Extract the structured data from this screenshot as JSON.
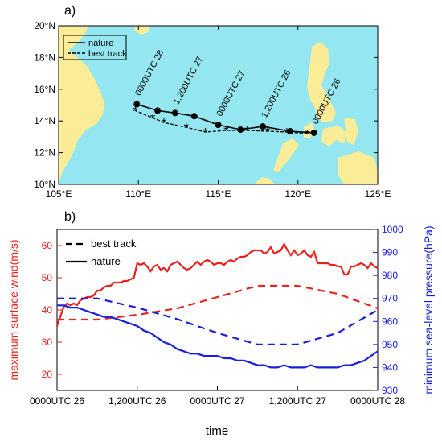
{
  "chart_data": [
    {
      "panel_label": "a)",
      "type": "line",
      "map": {
        "lon_ticks": [
          "105°E",
          "110°E",
          "115°E",
          "120°E",
          "125°E"
        ],
        "lat_ticks": [
          "10°N",
          "12°N",
          "14°N",
          "16°N",
          "18°N",
          "20°N"
        ],
        "xlim": [
          105,
          125
        ],
        "ylim": [
          10,
          20
        ],
        "ocean_color": "#94e6f0",
        "land_color": "#fbec97"
      },
      "legend": {
        "placement": "top-left",
        "items": [
          "nature",
          "best track"
        ]
      },
      "series": [
        {
          "name": "nature",
          "style": "solid-dot",
          "color": "#000000",
          "points": [
            [
              121.0,
              13.25
            ],
            [
              119.5,
              13.35
            ],
            [
              117.8,
              13.65
            ],
            [
              116.4,
              13.45
            ],
            [
              115.0,
              13.75
            ],
            [
              113.5,
              14.3
            ],
            [
              112.3,
              14.5
            ],
            [
              111.2,
              14.65
            ],
            [
              109.9,
              15.05
            ]
          ]
        },
        {
          "name": "best track",
          "style": "dashed-star",
          "color": "#000000",
          "points": [
            [
              120.6,
              13.2
            ],
            [
              119.3,
              13.3
            ],
            [
              118.1,
              13.35
            ],
            [
              116.8,
              13.4
            ],
            [
              115.5,
              13.4
            ],
            [
              114.2,
              13.3
            ],
            [
              113.0,
              13.6
            ],
            [
              111.6,
              13.9
            ],
            [
              110.9,
              14.2
            ],
            [
              109.8,
              14.65
            ]
          ]
        }
      ],
      "annotations": [
        {
          "text": "0000UTC 28",
          "lon": 109.9,
          "lat": 15.05
        },
        {
          "text": "1,200UTC 27",
          "lon": 112.3,
          "lat": 14.5
        },
        {
          "text": "0000UTC 27",
          "lon": 115.0,
          "lat": 13.75
        },
        {
          "text": "1,200UTC 26",
          "lon": 117.8,
          "lat": 13.65
        },
        {
          "text": "0000UTC 26",
          "lon": 121.0,
          "lat": 13.25
        }
      ]
    },
    {
      "panel_label": "b)",
      "type": "line",
      "xlabel": "time",
      "ylabel_left": "maximum surface wind(m/s)",
      "ylabel_right": "minimum sea-level pressure(hPa)",
      "x_ticks": [
        {
          "t": 0,
          "label": "0000UTC 26"
        },
        {
          "t": 12,
          "label": "1,200UTC 26"
        },
        {
          "t": 24,
          "label": "0000UTC 27"
        },
        {
          "t": 36,
          "label": "1,200UTC 27"
        },
        {
          "t": 48,
          "label": "0000UTC 28"
        }
      ],
      "xlim": [
        0,
        48
      ],
      "ylim_left": [
        15,
        65
      ],
      "yticks_left": [
        20,
        30,
        40,
        50,
        60
      ],
      "ylim_right": [
        930,
        1000
      ],
      "yticks_right": [
        930,
        940,
        950,
        960,
        970,
        980,
        990,
        1000
      ],
      "left_color": "#e8231e",
      "right_color": "#1a1ee0",
      "legend": {
        "placement": "top-left",
        "items": [
          "best track",
          "nature"
        ]
      },
      "series": [
        {
          "name": "nature wind",
          "axis": "left",
          "style": "solid",
          "color": "#e8231e",
          "t": [
            0,
            0.5,
            1,
            1.5,
            2,
            2.5,
            3,
            3.5,
            4,
            4.5,
            5,
            5.5,
            6,
            6.5,
            7,
            7.5,
            8,
            8.5,
            9,
            9.5,
            10,
            10.5,
            11,
            11.5,
            12,
            12.5,
            13,
            13.5,
            14,
            14.5,
            15,
            15.5,
            16,
            16.5,
            17,
            17.5,
            18,
            18.5,
            19,
            19.5,
            20,
            20.5,
            21,
            21.5,
            22,
            22.5,
            23,
            23.5,
            24,
            24.5,
            25,
            25.5,
            26,
            26.5,
            27,
            27.5,
            28,
            28.5,
            29,
            29.5,
            30,
            30.5,
            31,
            31.5,
            32,
            32.5,
            33,
            33.5,
            34,
            34.5,
            35,
            35.5,
            36,
            36.5,
            37,
            37.5,
            38,
            38.5,
            39,
            39.5,
            40,
            40.5,
            41,
            41.5,
            42,
            42.5,
            43,
            43.5,
            44,
            44.5,
            45,
            45.5,
            46,
            46.5,
            47,
            47.5,
            48
          ],
          "values": [
            35,
            38,
            41,
            42,
            41.5,
            42,
            41.5,
            43,
            43.5,
            44,
            44,
            44.5,
            46,
            46,
            47,
            47.5,
            47.5,
            48.5,
            48.5,
            48.5,
            49,
            49,
            49.5,
            50,
            54.5,
            54,
            54.5,
            53.5,
            52,
            53.5,
            54,
            52.5,
            53,
            52,
            54,
            54.5,
            55,
            54,
            53,
            52.5,
            53,
            54,
            55,
            54,
            55,
            55.5,
            55,
            54,
            54.5,
            54.5,
            54,
            55,
            55.5,
            55,
            56,
            56.5,
            56.5,
            57,
            58,
            58.5,
            58.5,
            58.5,
            57.5,
            58,
            59.5,
            57.5,
            58,
            58.5,
            60.5,
            58.5,
            57,
            58.5,
            57,
            57.5,
            58.5,
            57,
            56.5,
            58,
            54.5,
            54.5,
            54.5,
            54.5,
            54,
            54,
            53.5,
            53.5,
            51,
            51,
            53.5,
            53.5,
            54,
            54.5,
            54,
            53,
            54.5,
            53.5,
            53
          ]
        },
        {
          "name": "best track wind",
          "axis": "left",
          "style": "dashed",
          "color": "#e8231e",
          "t": [
            0,
            6,
            12,
            18,
            24,
            30,
            36,
            42,
            48
          ],
          "values": [
            37,
            37,
            38.5,
            40.5,
            44,
            47.5,
            47.5,
            45,
            40.5
          ]
        },
        {
          "name": "nature pressure",
          "axis": "right",
          "style": "solid",
          "color": "#1a1ee0",
          "t": [
            0,
            1,
            2,
            3,
            4,
            5,
            6,
            7,
            8,
            9,
            10,
            11,
            12,
            13,
            14,
            15,
            16,
            17,
            18,
            19,
            20,
            21,
            22,
            23,
            24,
            25,
            26,
            27,
            28,
            29,
            30,
            31,
            32,
            33,
            34,
            35,
            36,
            37,
            38,
            39,
            40,
            41,
            42,
            43,
            44,
            45,
            46,
            47,
            48
          ],
          "values": [
            967,
            967,
            966,
            966,
            965,
            964,
            963,
            962,
            962,
            961,
            960,
            959,
            958,
            956,
            955,
            953,
            951,
            950,
            948,
            947,
            946,
            946,
            945,
            945,
            945,
            944,
            944,
            943,
            943,
            942,
            941,
            941,
            940,
            940,
            941,
            940,
            940,
            940,
            941,
            940,
            940,
            940,
            940,
            941,
            941,
            942,
            943,
            945,
            947
          ]
        },
        {
          "name": "best track pressure",
          "axis": "right",
          "style": "dashed",
          "color": "#1a1ee0",
          "t": [
            0,
            6,
            12,
            18,
            24,
            30,
            36,
            42,
            48
          ],
          "values": [
            970,
            970,
            966,
            961,
            955,
            950,
            950,
            955,
            965
          ]
        }
      ]
    }
  ]
}
